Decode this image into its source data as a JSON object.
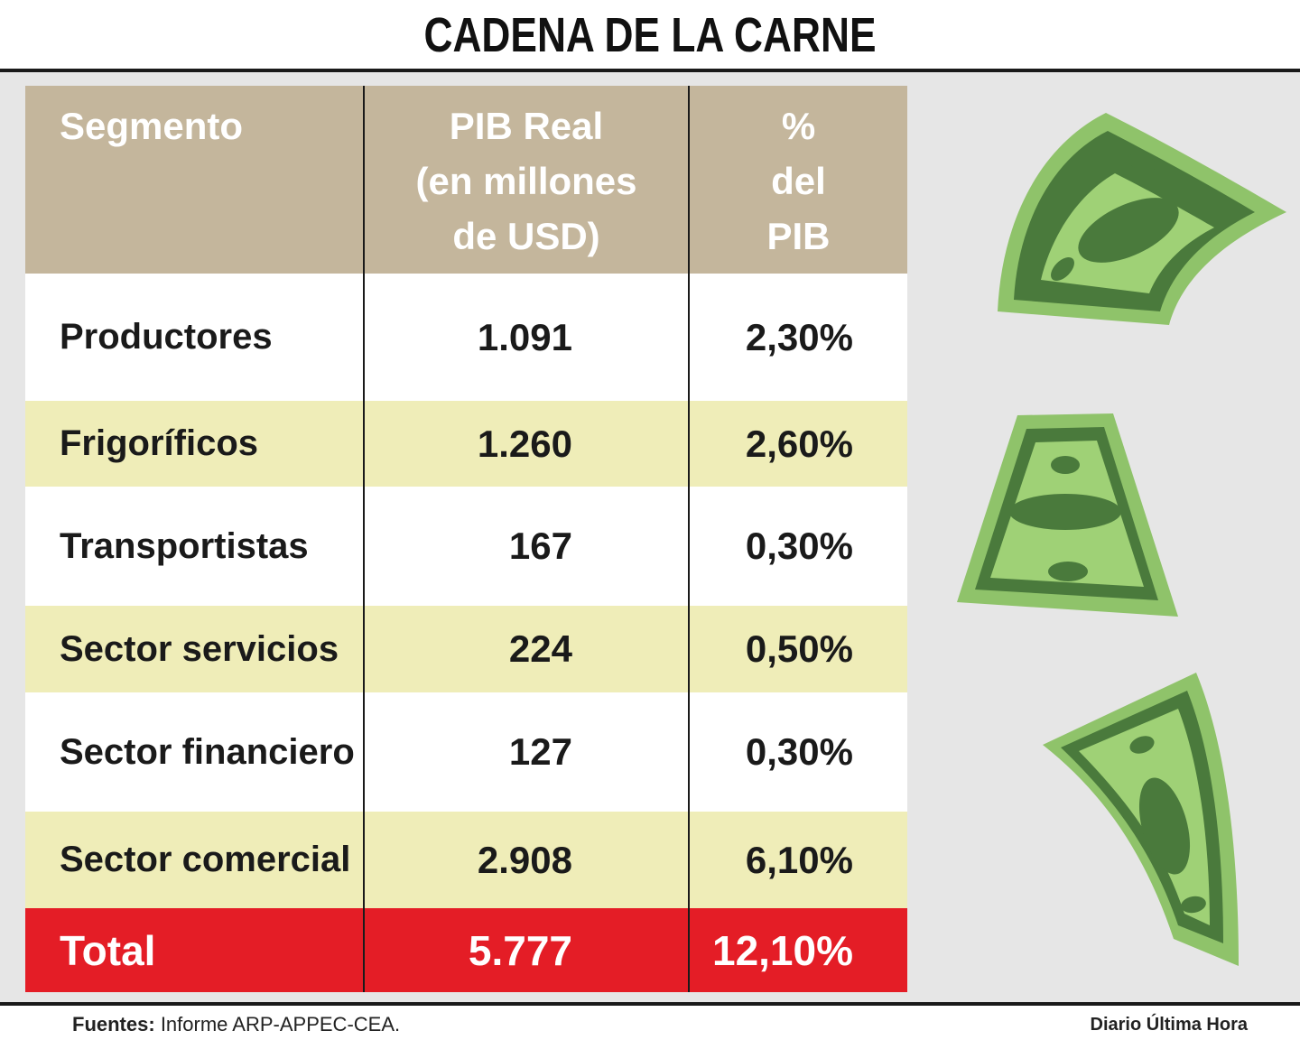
{
  "title": "CADENA DE LA CARNE",
  "chart_data": {
    "type": "table",
    "columns": [
      "Segmento",
      "PIB Real (en millones de USD)",
      "% del PIB"
    ],
    "header_lines": {
      "segment": [
        "Segmento"
      ],
      "gdp": [
        "PIB Real",
        "(en millones",
        "de USD)"
      ],
      "pct": [
        "%",
        "del",
        "PIB"
      ]
    },
    "rows": [
      {
        "segment": "Productores",
        "gdp": "1.091",
        "pct": "2,30%"
      },
      {
        "segment": "Frigoríficos",
        "gdp": "1.260",
        "pct": "2,60%"
      },
      {
        "segment": "Transportistas",
        "gdp": "167",
        "pct": "0,30%"
      },
      {
        "segment": "Sector servicios",
        "gdp": "224",
        "pct": "0,50%"
      },
      {
        "segment": "Sector financiero",
        "gdp": "127",
        "pct": "0,30%"
      },
      {
        "segment": "Sector comercial",
        "gdp": "2.908",
        "pct": "6,10%"
      }
    ],
    "total": {
      "segment": "Total",
      "gdp": "5.777",
      "pct": "12,10%"
    }
  },
  "footer": {
    "sources_label": "Fuentes",
    "sources_sep": ":",
    "sources_text": "Informe ARP-APPEC-CEA.",
    "credit": "Diario Última Hora"
  },
  "colors": {
    "header_bg": "#c4b69c",
    "row_tint": "#efedb8",
    "total_bg": "#e41d26",
    "panel_bg": "#e6e6e6",
    "bill_light": "#8fc36a",
    "bill_dark": "#4a7a3c"
  },
  "icons": [
    "money-bill-icon",
    "money-bill-icon",
    "money-bill-icon"
  ]
}
